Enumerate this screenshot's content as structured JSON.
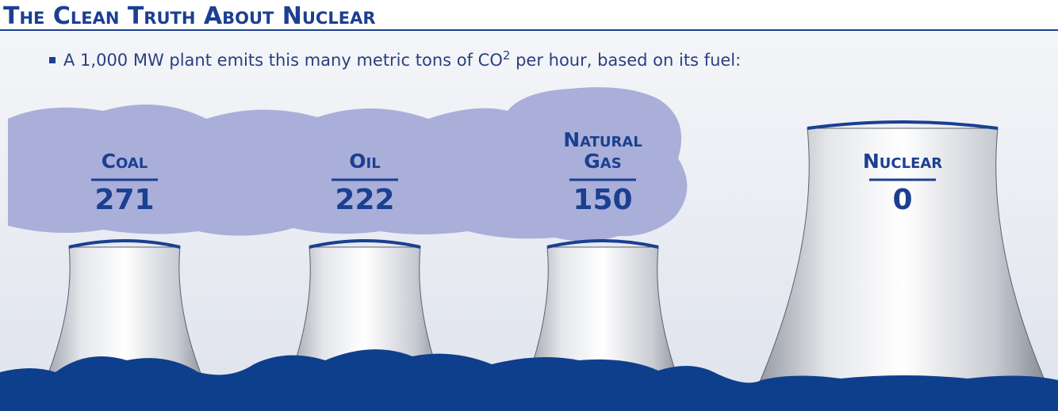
{
  "header": {
    "title": "The Clean Truth About Nuclear"
  },
  "subtitle": {
    "before": "A 1,000 MW plant emits this many metric tons of CO",
    "superscript": "2",
    "after": " per hour, based on its fuel:"
  },
  "plants": [
    {
      "label": "Coal",
      "value": 271
    },
    {
      "label": "Oil",
      "value": 222
    },
    {
      "label": "Natural Gas",
      "value": 150
    },
    {
      "label": "Nuclear",
      "value": 0
    }
  ]
}
